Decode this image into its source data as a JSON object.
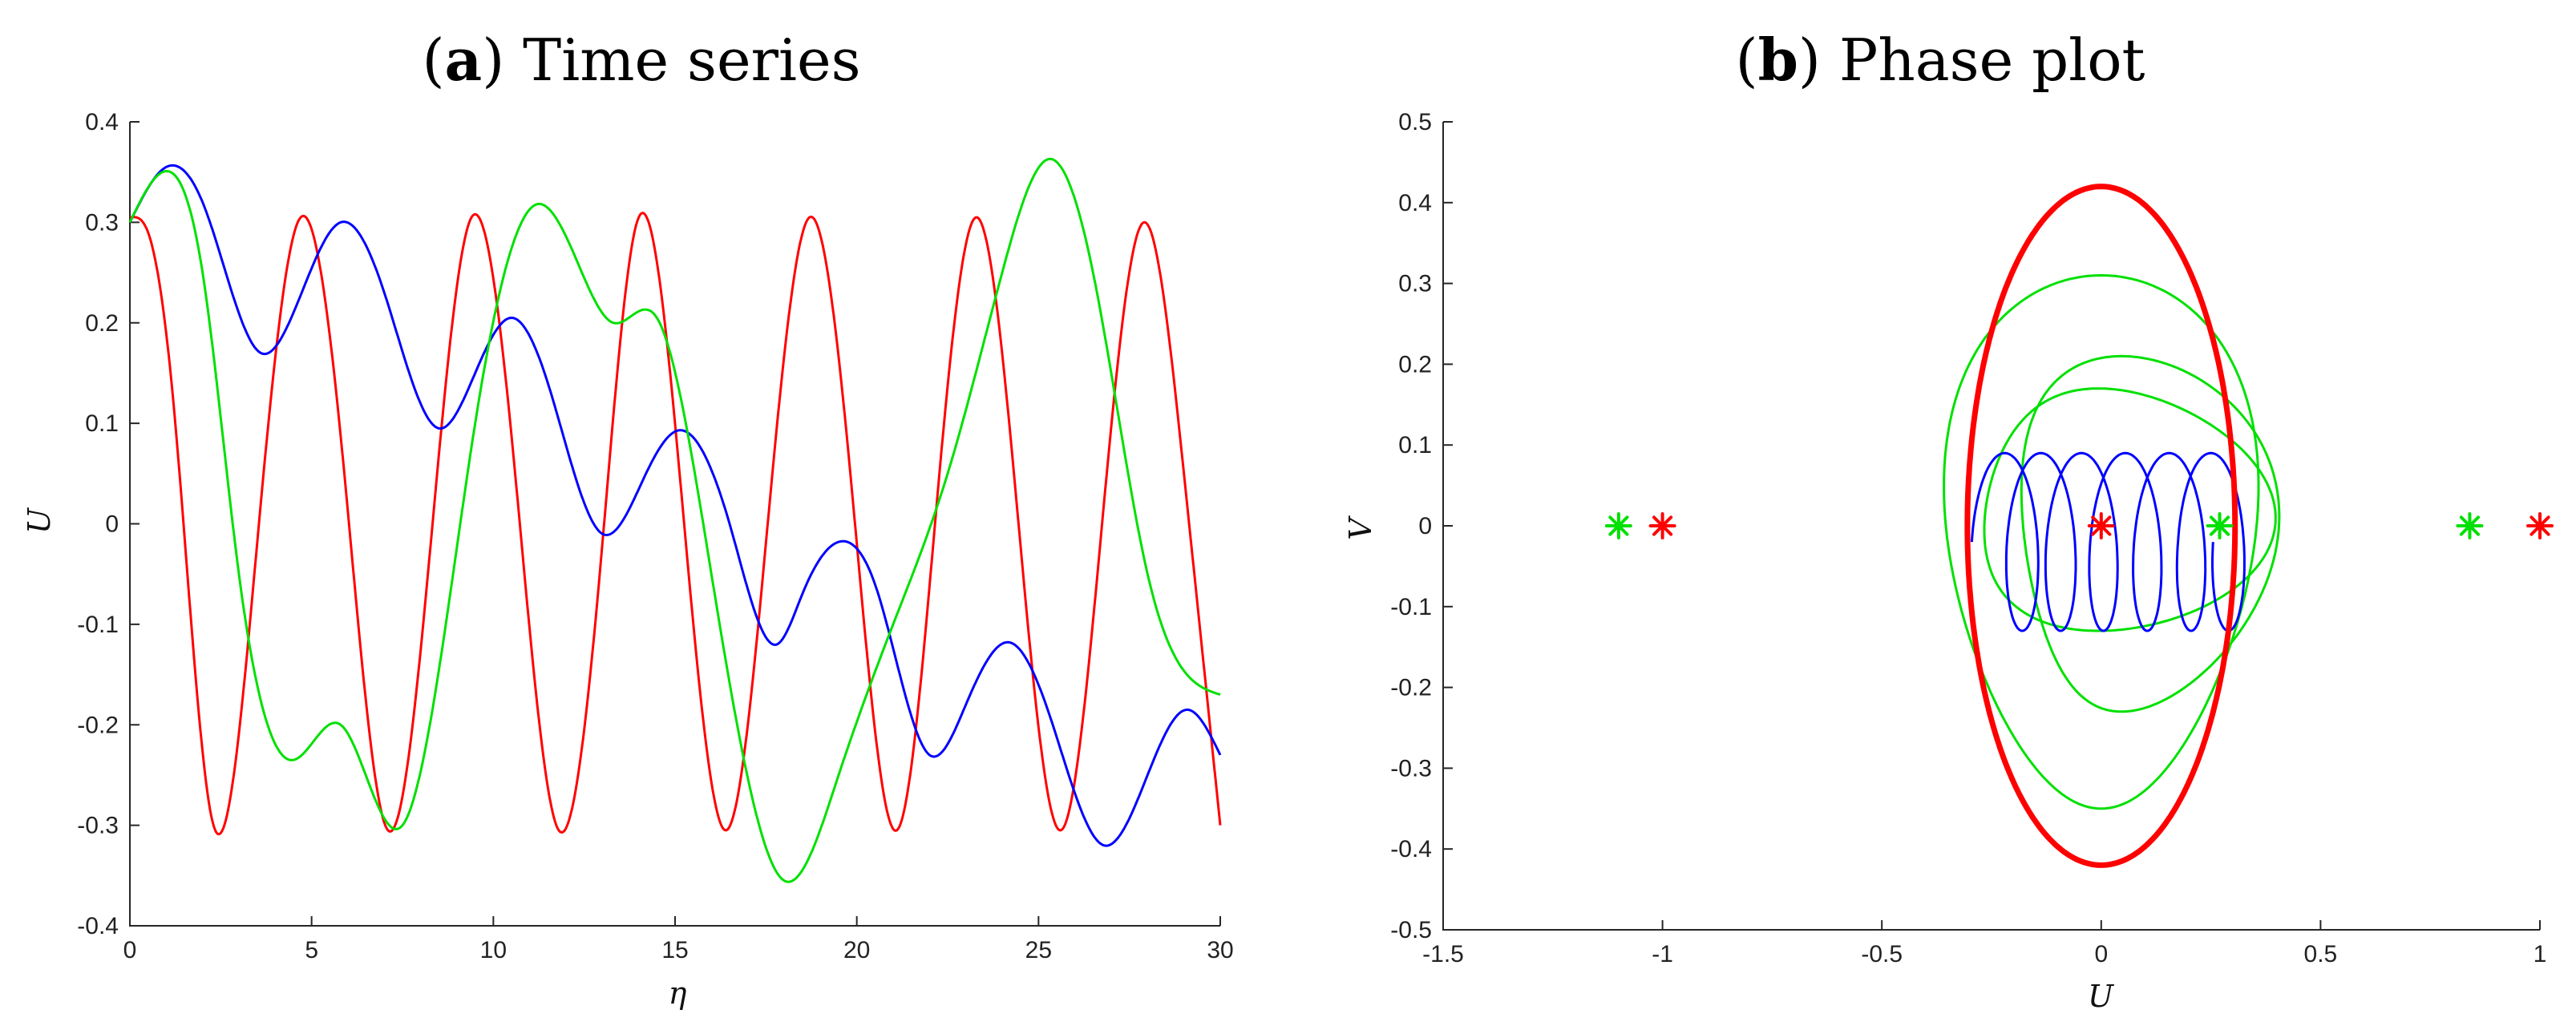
{
  "chart_data": [
    {
      "type": "line",
      "panel_tag": "a",
      "title": "Time series",
      "xlabel": "η",
      "ylabel": "U",
      "xlim": [
        0,
        30
      ],
      "ylim": [
        -0.4,
        0.4
      ],
      "x_ticks": [
        "0",
        "5",
        "10",
        "15",
        "20",
        "25",
        "30"
      ],
      "y_ticks": [
        "-0.4",
        "-0.3",
        "-0.2",
        "-0.1",
        "0",
        "0.1",
        "0.2",
        "0.3",
        "0.4"
      ],
      "grid": false,
      "series": [
        {
          "color": "#ff0000",
          "x": [
            0,
            0.5,
            1.2,
            2.3,
            3.5,
            4.7,
            5.9,
            7.1,
            8.2,
            9.4,
            10.6,
            11.8,
            13.0,
            14.0,
            15.2,
            16.4,
            17.6,
            18.7,
            19.9,
            21.1,
            22.2,
            23.3,
            24.4,
            25.6,
            26.8,
            27.9,
            29.0,
            30.0
          ],
          "y": [
            0.305,
            0.29,
            0.12,
            -0.3,
            -0.02,
            0.305,
            0.05,
            -0.305,
            -0.05,
            0.305,
            0.05,
            -0.305,
            -0.02,
            0.305,
            0.02,
            -0.305,
            0.02,
            0.305,
            0.02,
            -0.305,
            0.02,
            0.305,
            0.02,
            -0.305,
            0.02,
            0.3,
            0.05,
            -0.3
          ]
        },
        {
          "color": "#0000ff",
          "x": [
            0,
            1.0,
            2.0,
            3.6,
            4.5,
            5.8,
            7.0,
            8.5,
            9.5,
            10.5,
            11.5,
            13.0,
            14.2,
            15.1,
            16.5,
            17.8,
            18.5,
            19.5,
            20.5,
            22.0,
            23.0,
            24.2,
            25.3,
            26.8,
            28.0,
            29.1,
            30.0
          ],
          "y": [
            0.3,
            0.355,
            0.32,
            0.17,
            0.21,
            0.3,
            0.23,
            0.095,
            0.15,
            0.205,
            0.14,
            -0.01,
            0.05,
            0.093,
            0.0,
            -0.12,
            -0.07,
            -0.018,
            -0.06,
            -0.23,
            -0.18,
            -0.118,
            -0.19,
            -0.32,
            -0.25,
            -0.185,
            -0.23
          ]
        },
        {
          "color": "#00e000",
          "x": [
            0,
            0.9,
            2.0,
            3.0,
            4.5,
            5.8,
            7.5,
            9.5,
            11.2,
            12.2,
            13.3,
            14.5,
            16.0,
            18.0,
            19.5,
            21.0,
            22.5,
            24.0,
            25.3,
            26.5,
            28.0,
            30.0
          ],
          "y": [
            0.3,
            0.35,
            0.25,
            -0.05,
            -0.235,
            -0.2,
            -0.3,
            0.1,
            0.318,
            0.27,
            0.2,
            0.205,
            -0.05,
            -0.355,
            -0.25,
            -0.1,
            0.05,
            0.25,
            0.363,
            0.25,
            -0.05,
            -0.17
          ]
        }
      ]
    },
    {
      "type": "line",
      "panel_tag": "b",
      "title": "Phase plot",
      "xlabel": "U",
      "ylabel": "V",
      "xlim": [
        -1.5,
        1
      ],
      "ylim": [
        -0.5,
        0.5
      ],
      "x_ticks": [
        "-1.5",
        "-1",
        "-0.5",
        "0",
        "0.5",
        "1"
      ],
      "y_ticks": [
        "-0.5",
        "-0.4",
        "-0.3",
        "-0.2",
        "-0.1",
        "0",
        "0.1",
        "0.2",
        "0.3",
        "0.4",
        "0.5"
      ],
      "grid": false,
      "red_orbit": {
        "color": "#ff0000",
        "u_amplitude": 0.305,
        "v_amplitude": 0.42
      },
      "green_orbits": [
        {
          "color": "#00e000",
          "center_u": 0.0,
          "center_v": -0.02,
          "rx": 0.35,
          "ry": 0.33
        },
        {
          "color": "#00e000",
          "center_u": 0.08,
          "center_v": -0.01,
          "rx": 0.29,
          "ry": 0.22
        },
        {
          "color": "#00e000",
          "center_u": 0.03,
          "center_v": 0.02,
          "rx": 0.33,
          "ry": 0.15
        }
      ],
      "blue_loops": {
        "color": "#0000ff",
        "centers_u": [
          -0.24,
          -0.16,
          -0.07,
          0.03,
          0.13,
          0.23,
          0.31
        ],
        "rx": 0.055,
        "ry": 0.11,
        "v_offset": -0.02
      },
      "markers": [
        {
          "color": "#00e000",
          "u": -1.1,
          "v": 0
        },
        {
          "color": "#ff0000",
          "u": -1.0,
          "v": 0
        },
        {
          "color": "#ff0000",
          "u": 0.0,
          "v": 0
        },
        {
          "color": "#00e000",
          "u": 0.27,
          "v": 0
        },
        {
          "color": "#00e000",
          "u": 0.84,
          "v": 0
        },
        {
          "color": "#ff0000",
          "u": 1.0,
          "v": 0
        }
      ]
    }
  ]
}
